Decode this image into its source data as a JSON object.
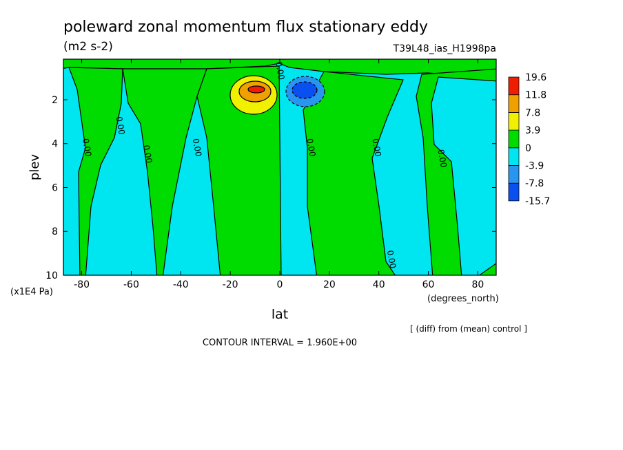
{
  "chart_data": {
    "type": "contour",
    "title": "poleward zonal momentum flux stationary eddy",
    "units": "(m2 s-2)",
    "run": "T39L48_ias_H1998pa",
    "xlabel": "lat",
    "ylabel": "plev",
    "xunit": "(degrees_north)",
    "yunit": "(x1E4 Pa)",
    "xlim": [
      -87.4,
      87.4
    ],
    "ylim": [
      10,
      0.15
    ],
    "xticks": [
      -80,
      -60,
      -40,
      -20,
      0,
      20,
      40,
      60,
      80
    ],
    "yticks": [
      2,
      4,
      6,
      8,
      10
    ],
    "levels": [
      -15.7,
      -7.8,
      -3.9,
      0,
      3.9,
      7.8,
      11.8,
      19.6
    ],
    "colors": [
      "#0a50f0",
      "#2896f0",
      "#00e6f0",
      "#00dc00",
      "#f0f000",
      "#f0a000",
      "#f01e00"
    ],
    "contour_labels": [
      "0.00",
      "0.00",
      "0.00",
      "0.00",
      "0.00",
      "0.00",
      "0.00",
      "0.00",
      "0.00"
    ],
    "note": "[ (diff) from (mean) control ]",
    "contour_interval": "CONTOUR INTERVAL = 1.960E+00"
  }
}
